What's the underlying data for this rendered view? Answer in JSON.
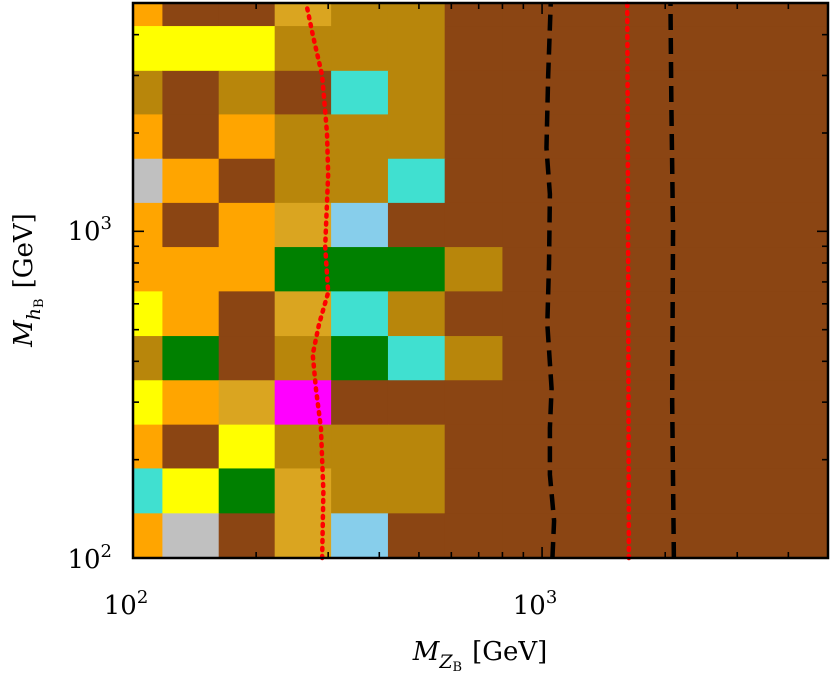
{
  "chart_data": {
    "type": "heatmap",
    "x_scale": "log",
    "y_scale": "log",
    "xlim": [
      100,
      5000
    ],
    "ylim": [
      100,
      5000
    ],
    "xlabel": {
      "main": "M",
      "sub": "Z",
      "subsub": "B",
      "unit": "[GeV]"
    },
    "ylabel": {
      "main": "M",
      "sub": "h",
      "subsub": "B",
      "unit": "[GeV]"
    },
    "x_ticks": [
      {
        "value": 100,
        "base": "10",
        "exp": "2"
      },
      {
        "value": 1000,
        "base": "10",
        "exp": "3"
      }
    ],
    "y_ticks": [
      {
        "value": 100,
        "base": "10",
        "exp": "2"
      },
      {
        "value": 1000,
        "base": "10",
        "exp": "3"
      }
    ],
    "x_edges": [
      100,
      118,
      162,
      222,
      305,
      420,
      578,
      800,
      5000
    ],
    "y_edges": [
      100,
      137,
      188,
      256,
      350,
      478,
      655,
      895,
      1222,
      1668,
      2280,
      3100,
      4250,
      5000
    ],
    "colors": {
      "a": "#ffa500",
      "b": "#8b4513",
      "y": "#ffff00",
      "g": "#008000",
      "G": "#b8860b",
      "s": "#c0c0c0",
      "t": "#40e0d0",
      "k": "#87ceeb",
      "m": "#ff00ff",
      "d": "#daa520"
    },
    "cells": [
      "abbdGGbb",
      "yyyGGGbb",
      "GbGbtGbb",
      "abaGGGbb",
      "sabGGtbb",
      "abadkbbb",
      "aaagggGb",
      "yabdtGbb",
      "GgbGgtGb",
      "yadmbbbb",
      "abyGGGbb",
      "tygdGGbb",
      "asbdkbbb"
    ],
    "background_color": "#8b4513",
    "contours": [
      {
        "name": "black-dashed-contour-1",
        "color": "#000000",
        "style": "dashed",
        "points": [
          [
            1060,
            100
          ],
          [
            1070,
            130
          ],
          [
            1045,
            180
          ],
          [
            1045,
            250
          ],
          [
            1055,
            330
          ],
          [
            1030,
            520
          ],
          [
            1040,
            800
          ],
          [
            1045,
            1300
          ],
          [
            1025,
            1800
          ],
          [
            1035,
            3000
          ],
          [
            1050,
            5000
          ]
        ]
      },
      {
        "name": "black-dashed-contour-2",
        "color": "#000000",
        "style": "dashed",
        "points": [
          [
            2100,
            100
          ],
          [
            2080,
            300
          ],
          [
            2090,
            1000
          ],
          [
            2070,
            2500
          ],
          [
            2060,
            5000
          ]
        ]
      },
      {
        "name": "red-dotted-contour-1",
        "color": "#ff0000",
        "style": "dotted",
        "points": [
          [
            290,
            100
          ],
          [
            292,
            160
          ],
          [
            288,
            250
          ],
          [
            280,
            330
          ],
          [
            275,
            420
          ],
          [
            285,
            520
          ],
          [
            300,
            650
          ],
          [
            295,
            900
          ],
          [
            300,
            1500
          ],
          [
            298,
            2000
          ],
          [
            290,
            3000
          ],
          [
            275,
            4000
          ],
          [
            265,
            5000
          ]
        ]
      },
      {
        "name": "red-dotted-contour-2",
        "color": "#ff0000",
        "style": "dotted",
        "points": [
          [
            1630,
            100
          ],
          [
            1625,
            500
          ],
          [
            1620,
            2000
          ],
          [
            1615,
            5000
          ]
        ]
      }
    ]
  }
}
